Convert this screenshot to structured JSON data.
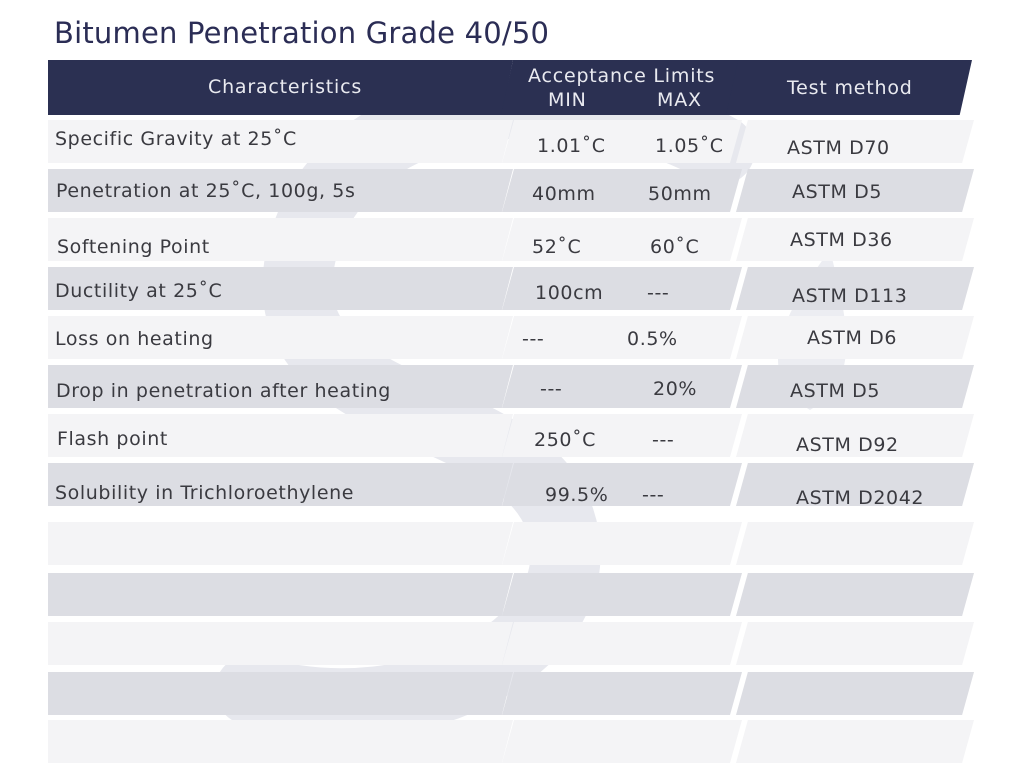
{
  "title": "Bitumen Penetration Grade 40/50",
  "header": {
    "characteristics": "Characteristics",
    "acceptance": "Acceptance Limits",
    "min": "MIN",
    "max": "MAX",
    "test_method": "Test method"
  },
  "rows": [
    {
      "characteristic": "Specific Gravity at 25˚C",
      "min": "1.01˚C",
      "max": "1.05˚C",
      "method": "ASTM D70"
    },
    {
      "characteristic": "Penetration at 25˚C, 100g, 5s",
      "min": "40mm",
      "max": "50mm",
      "method": "ASTM D5"
    },
    {
      "characteristic": "Softening Point",
      "min": "52˚C",
      "max": "60˚C",
      "method": "ASTM D36"
    },
    {
      "characteristic": "Ductility at 25˚C",
      "min": "100cm",
      "max": "---",
      "method": "ASTM D113"
    },
    {
      "characteristic": "Loss on heating",
      "min": "---",
      "max": "0.5%",
      "method": "ASTM D6"
    },
    {
      "characteristic": "Drop in penetration after heating",
      "min": "---",
      "max": "20%",
      "method": "ASTM D5"
    },
    {
      "characteristic": "Flash point",
      "min": "250˚C",
      "max": "---",
      "method": "ASTM D92"
    },
    {
      "characteristic": "Solubility in Trichloroethylene",
      "min": "99.5%",
      "max": "---",
      "method": "ASTM D2042"
    }
  ],
  "empty_rows": 5,
  "colors": {
    "header": "#2b3052",
    "row_dark": "#dcdde3",
    "row_light": "#f4f4f6",
    "title": "#2b2d55"
  }
}
